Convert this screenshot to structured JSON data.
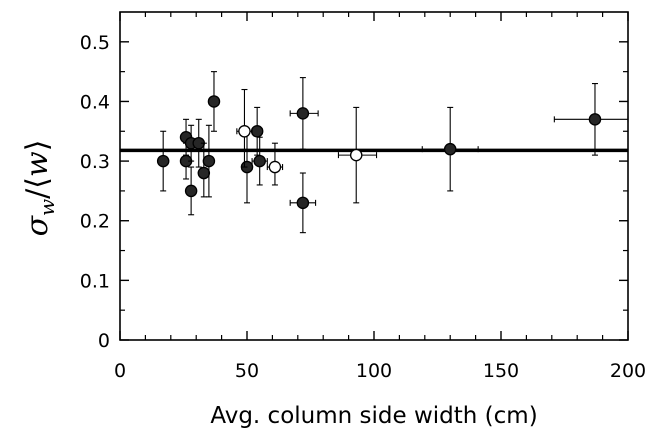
{
  "chart_data": {
    "type": "scatter",
    "xlabel": "Avg. column side width (cm)",
    "ylabel": {
      "sigma": "σ",
      "sub": "w",
      "slash": "/",
      "open": "⟨",
      "w": "w",
      "close": "⟩"
    },
    "xlim": [
      0,
      200
    ],
    "ylim": [
      0,
      0.55
    ],
    "x_ticks": [
      0,
      50,
      100,
      150,
      200
    ],
    "y_ticks": [
      0,
      0.1,
      0.2,
      0.3,
      0.4,
      0.5
    ],
    "x_tick_labels": [
      "0",
      "50",
      "100",
      "150",
      "200"
    ],
    "y_tick_labels": [
      "0",
      "0.1",
      "0.2",
      "0.3",
      "0.4",
      "0.5"
    ],
    "grid": false,
    "reference_line": {
      "y": 0.318
    },
    "series": [
      {
        "marker": "filled",
        "points": [
          {
            "x": 17,
            "y": 0.3,
            "ylo": 0.25,
            "yhi": 0.35
          },
          {
            "x": 26,
            "y": 0.34,
            "ylo": 0.31,
            "yhi": 0.37
          },
          {
            "x": 26,
            "y": 0.3,
            "ylo": 0.27,
            "yhi": 0.33
          },
          {
            "x": 28,
            "y": 0.33,
            "ylo": 0.3,
            "yhi": 0.36
          },
          {
            "x": 28,
            "y": 0.25,
            "ylo": 0.21,
            "yhi": 0.29
          },
          {
            "x": 31,
            "y": 0.33,
            "ylo": 0.29,
            "yhi": 0.37
          },
          {
            "x": 33,
            "y": 0.28,
            "ylo": 0.24,
            "yhi": 0.33
          },
          {
            "x": 35,
            "y": 0.3,
            "ylo": 0.24,
            "yhi": 0.36
          },
          {
            "x": 37,
            "y": 0.4,
            "ylo": 0.35,
            "yhi": 0.45
          },
          {
            "x": 50,
            "y": 0.29,
            "ylo": 0.23,
            "yhi": 0.35,
            "xlo": 48,
            "xhi": 52
          },
          {
            "x": 54,
            "y": 0.35,
            "ylo": 0.31,
            "yhi": 0.39,
            "xlo": 52,
            "xhi": 56
          },
          {
            "x": 55,
            "y": 0.3,
            "ylo": 0.26,
            "yhi": 0.34,
            "xlo": 52,
            "xhi": 58
          },
          {
            "x": 72,
            "y": 0.38,
            "ylo": 0.32,
            "yhi": 0.44,
            "xlo": 67,
            "xhi": 78
          },
          {
            "x": 72,
            "y": 0.23,
            "ylo": 0.18,
            "yhi": 0.28,
            "xlo": 67,
            "xhi": 77
          },
          {
            "x": 130,
            "y": 0.32,
            "ylo": 0.25,
            "yhi": 0.39,
            "xlo": 119,
            "xhi": 141
          },
          {
            "x": 187,
            "y": 0.37,
            "ylo": 0.31,
            "yhi": 0.43,
            "xlo": 171,
            "xhi": 200
          }
        ]
      },
      {
        "marker": "open",
        "points": [
          {
            "x": 49,
            "y": 0.35,
            "ylo": 0.29,
            "yhi": 0.42,
            "xlo": 46,
            "xhi": 52
          },
          {
            "x": 61,
            "y": 0.29,
            "ylo": 0.26,
            "yhi": 0.33,
            "xlo": 58,
            "xhi": 64
          },
          {
            "x": 93,
            "y": 0.31,
            "ylo": 0.23,
            "yhi": 0.39,
            "xlo": 86,
            "xhi": 101
          }
        ]
      }
    ]
  }
}
